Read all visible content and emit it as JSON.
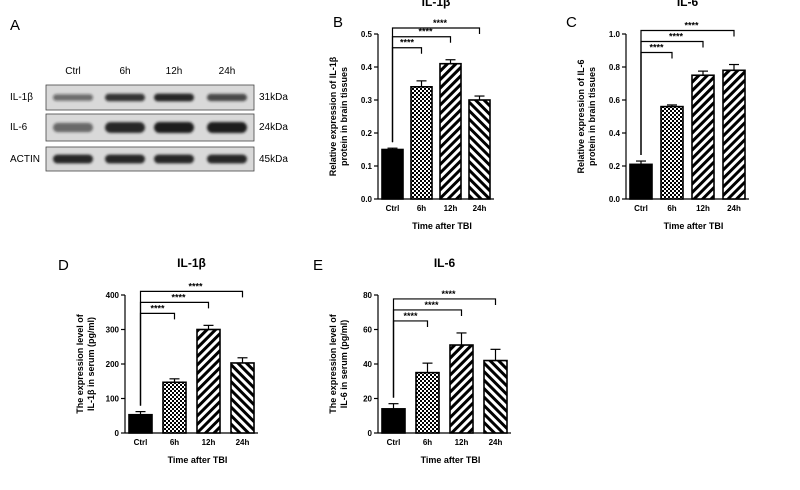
{
  "western_blot": {
    "letter": "A",
    "lanes": [
      "Ctrl",
      "6h",
      "12h",
      "24h"
    ],
    "rows": [
      {
        "protein": "IL-1β",
        "size": "31kDa",
        "intensity": [
          0.55,
          0.85,
          0.95,
          0.75
        ]
      },
      {
        "protein": "IL-6",
        "size": "24kDa",
        "intensity": [
          0.6,
          0.95,
          1.0,
          1.0
        ]
      },
      {
        "protein": "ACTIN",
        "size": "45kDa",
        "intensity": [
          0.95,
          0.95,
          0.95,
          0.95
        ]
      }
    ]
  },
  "colors": {
    "bar_outline": "#000000",
    "ctrl_fill": "#000000",
    "blot_bg": "#d9d9d9",
    "band": "#1a1a1a"
  },
  "chart_data": [
    {
      "id": "B",
      "type": "bar",
      "title": "IL-1β",
      "xlabel": "Time after TBI",
      "ylabel": [
        "Relative expression of IL-1β",
        "protein in brain tissues"
      ],
      "categories": [
        "Ctrl",
        "6h",
        "12h",
        "24h"
      ],
      "values": [
        0.15,
        0.34,
        0.41,
        0.3
      ],
      "errors": [
        0.004,
        0.018,
        0.012,
        0.012
      ],
      "patterns": [
        "solid",
        "check",
        "diag",
        "diag-back"
      ],
      "ylim": [
        0,
        0.5
      ],
      "yticks": [
        0.0,
        0.1,
        0.2,
        0.3,
        0.4,
        0.5
      ],
      "ytick_labels": [
        "0.0",
        "0.1",
        "0.2",
        "0.3",
        "0.4",
        "0.5"
      ],
      "comparisons": [
        {
          "from": "Ctrl",
          "to": "6h",
          "label": "****"
        },
        {
          "from": "Ctrl",
          "to": "12h",
          "label": "****"
        },
        {
          "from": "Ctrl",
          "to": "24h",
          "label": "****"
        }
      ]
    },
    {
      "id": "C",
      "type": "bar",
      "title": "IL-6",
      "xlabel": "Time after TBI",
      "ylabel": [
        "Relative expression of IL-6",
        "protein in brain tissues"
      ],
      "categories": [
        "Ctrl",
        "6h",
        "12h",
        "24h"
      ],
      "values": [
        0.21,
        0.56,
        0.75,
        0.78
      ],
      "errors": [
        0.02,
        0.01,
        0.025,
        0.035
      ],
      "patterns": [
        "solid",
        "check",
        "diag",
        "diag"
      ],
      "ylim": [
        0,
        1.0
      ],
      "yticks": [
        0.0,
        0.2,
        0.4,
        0.6,
        0.8,
        1.0
      ],
      "ytick_labels": [
        "0.0",
        "0.2",
        "0.4",
        "0.6",
        "0.8",
        "1.0"
      ],
      "comparisons": [
        {
          "from": "Ctrl",
          "to": "6h",
          "label": "****"
        },
        {
          "from": "Ctrl",
          "to": "12h",
          "label": "****"
        },
        {
          "from": "Ctrl",
          "to": "24h",
          "label": "****"
        }
      ]
    },
    {
      "id": "D",
      "type": "bar",
      "title": "IL-1β",
      "xlabel": "Time after TBI",
      "ylabel": [
        "The expression level of",
        "IL-1β in serum (pg/ml)"
      ],
      "categories": [
        "Ctrl",
        "6h",
        "12h",
        "24h"
      ],
      "values": [
        53,
        147,
        300,
        203
      ],
      "errors": [
        9,
        10,
        12,
        15
      ],
      "patterns": [
        "solid",
        "check",
        "diag",
        "diag-back"
      ],
      "ylim": [
        0,
        400
      ],
      "yticks": [
        0,
        100,
        200,
        300,
        400
      ],
      "ytick_labels": [
        "0",
        "100",
        "200",
        "300",
        "400"
      ],
      "comparisons": [
        {
          "from": "Ctrl",
          "to": "6h",
          "label": "****"
        },
        {
          "from": "Ctrl",
          "to": "12h",
          "label": "****"
        },
        {
          "from": "Ctrl",
          "to": "24h",
          "label": "****"
        }
      ]
    },
    {
      "id": "E",
      "type": "bar",
      "title": "IL-6",
      "xlabel": "Time after TBI",
      "ylabel": [
        "The expression level of",
        "IL-6 in serum (pg/ml)"
      ],
      "categories": [
        "Ctrl",
        "6h",
        "12h",
        "24h"
      ],
      "values": [
        14,
        35,
        51,
        42
      ],
      "errors": [
        3,
        5.5,
        7,
        6.5
      ],
      "patterns": [
        "solid",
        "check",
        "diag",
        "diag-back"
      ],
      "ylim": [
        0,
        80
      ],
      "yticks": [
        0,
        20,
        40,
        60,
        80
      ],
      "ytick_labels": [
        "0",
        "20",
        "40",
        "60",
        "80"
      ],
      "comparisons": [
        {
          "from": "Ctrl",
          "to": "6h",
          "label": "****"
        },
        {
          "from": "Ctrl",
          "to": "12h",
          "label": "****"
        },
        {
          "from": "Ctrl",
          "to": "24h",
          "label": "****"
        }
      ]
    }
  ]
}
